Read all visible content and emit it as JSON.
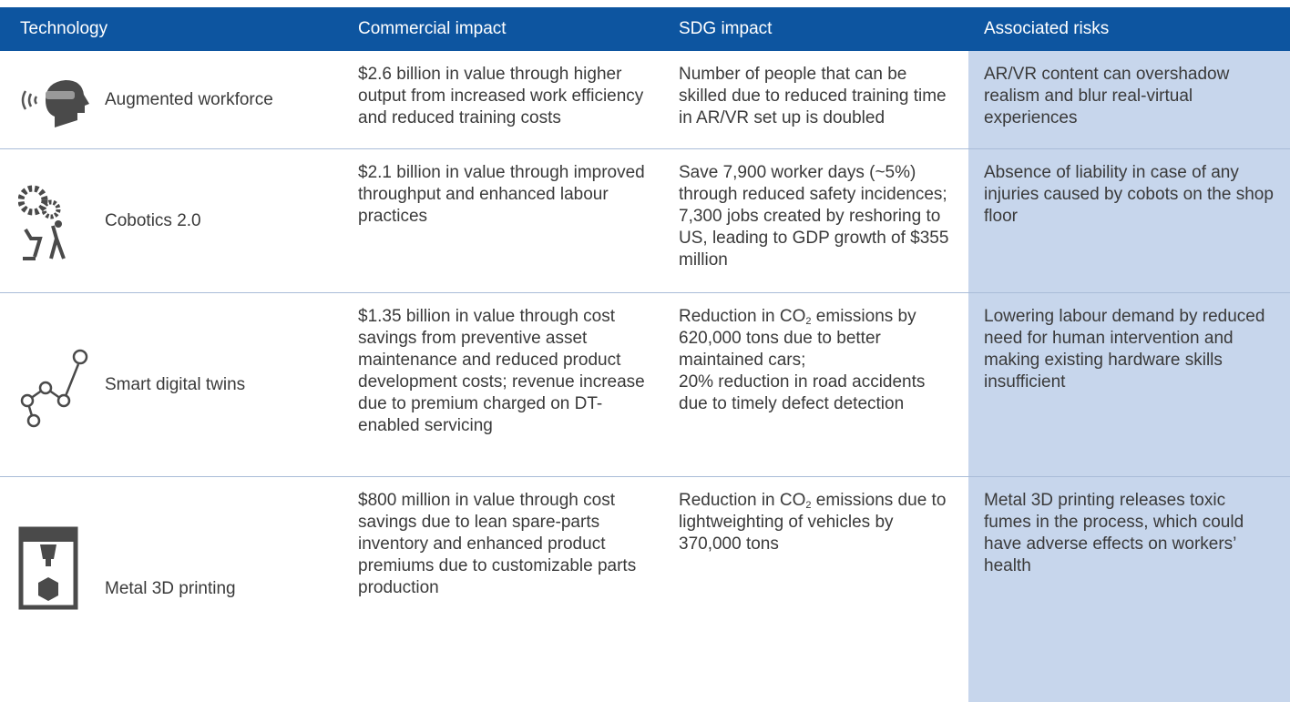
{
  "table": {
    "header": [
      "Technology",
      "Commercial impact",
      "SDG impact",
      "Associated risks"
    ],
    "rows": [
      {
        "technology": "Augmented workforce",
        "commercial": "$2.6 billion in value through higher output from increased work efficiency and reduced training costs",
        "sdg": [
          {
            "text": "Number of people that can be skilled due to reduced training time in AR/VR set up is doubled"
          }
        ],
        "risks": "AR/VR content can overshadow realism and blur real-virtual experiences"
      },
      {
        "technology": "Cobotics 2.0",
        "commercial": "$2.1 billion in value through improved throughput and enhanced labour practices",
        "sdg": [
          {
            "text": "Save 7,900 worker days (~5%) through reduced safety incidences;"
          },
          {
            "text": "7,300 jobs created by reshoring to US, leading to GDP growth of $355 million"
          }
        ],
        "risks": "Absence of liability in case of any injuries caused by cobots on the shop floor"
      },
      {
        "technology": "Smart digital twins",
        "commercial": "$1.35 billion in value through cost savings from preventive asset maintenance and reduced product development costs; revenue increase due to premium charged on DT-enabled servicing",
        "sdg": [
          {
            "text": "Reduction in CO",
            "sub": "2",
            "rest": " emissions by 620,000 tons due to better maintained cars;"
          },
          {
            "text": "20% reduction in road accidents due to timely defect detection"
          }
        ],
        "risks": "Lowering labour demand by reduced need for human intervention and making existing hardware skills insufficient"
      },
      {
        "technology": "Metal 3D printing",
        "commercial": "$800 million in value through cost savings due to lean spare-parts inventory and enhanced product premiums due to customizable parts production",
        "sdg": [
          {
            "text": "Reduction in CO",
            "sub": "2",
            "rest": " emissions due to lightweighting of vehicles by 370,000 tons"
          }
        ],
        "risks": "Metal 3D printing releases toxic fumes in the process, which could have adverse effects on workers’ health"
      }
    ]
  }
}
